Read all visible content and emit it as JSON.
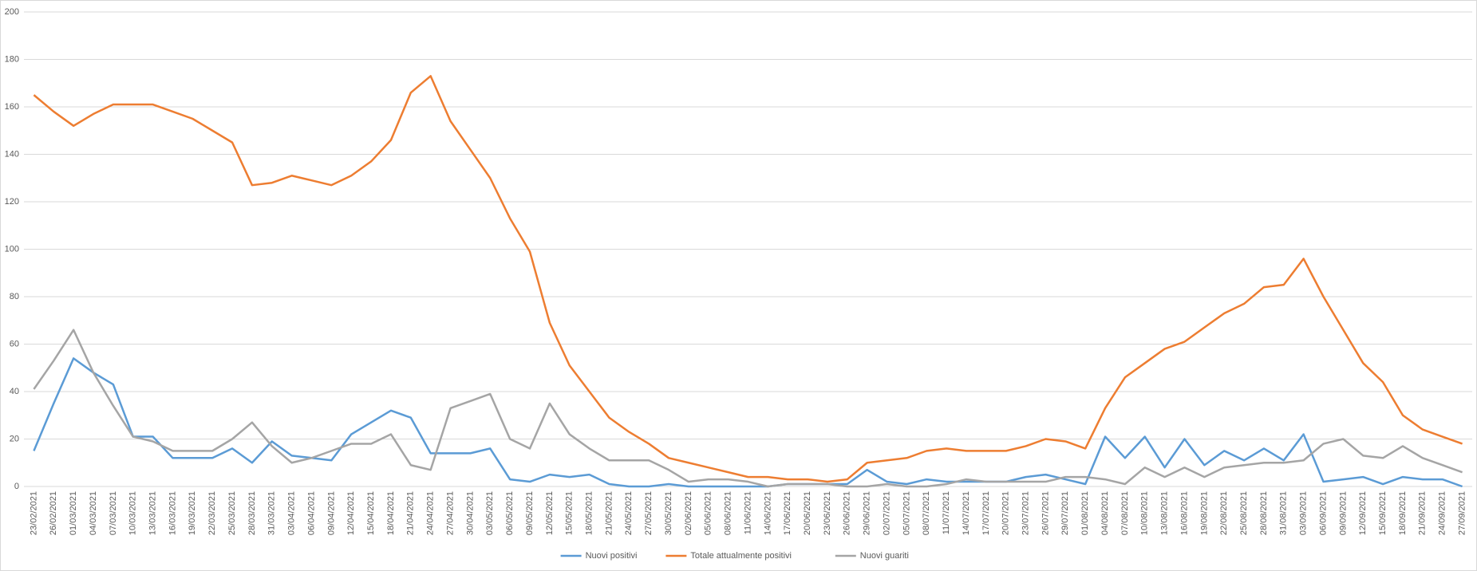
{
  "chart_data": {
    "type": "line",
    "categories": [
      "23/02/2021",
      "26/02/2021",
      "01/03/2021",
      "04/03/2021",
      "07/03/2021",
      "10/03/2021",
      "13/03/2021",
      "16/03/2021",
      "19/03/2021",
      "22/03/2021",
      "25/03/2021",
      "28/03/2021",
      "31/03/2021",
      "03/04/2021",
      "06/04/2021",
      "09/04/2021",
      "12/04/2021",
      "15/04/2021",
      "18/04/2021",
      "21/04/2021",
      "24/04/2021",
      "27/04/2021",
      "30/04/2021",
      "03/05/2021",
      "06/05/2021",
      "09/05/2021",
      "12/05/2021",
      "15/05/2021",
      "18/05/2021",
      "21/05/2021",
      "24/05/2021",
      "27/05/2021",
      "30/05/2021",
      "02/06/2021",
      "05/06/2021",
      "08/06/2021",
      "11/06/2021",
      "14/06/2021",
      "17/06/2021",
      "20/06/2021",
      "23/06/2021",
      "26/06/2021",
      "29/06/2021",
      "02/07/2021",
      "05/07/2021",
      "08/07/2021",
      "11/07/2021",
      "14/07/2021",
      "17/07/2021",
      "20/07/2021",
      "23/07/2021",
      "26/07/2021",
      "29/07/2021",
      "01/08/2021",
      "04/08/2021",
      "07/08/2021",
      "10/08/2021",
      "13/08/2021",
      "16/08/2021",
      "19/08/2021",
      "22/08/2021",
      "25/08/2021",
      "28/08/2021",
      "31/08/2021",
      "03/09/2021",
      "06/09/2021",
      "09/09/2021",
      "12/09/2021",
      "15/09/2021",
      "18/09/2021",
      "21/09/2021",
      "24/09/2021",
      "27/09/2021"
    ],
    "series": [
      {
        "name": "Nuovi positivi",
        "color": "#5b9bd5",
        "values": [
          15,
          35,
          54,
          48,
          43,
          21,
          21,
          12,
          12,
          12,
          16,
          10,
          19,
          13,
          12,
          11,
          22,
          27,
          32,
          29,
          14,
          14,
          14,
          16,
          3,
          2,
          5,
          4,
          5,
          1,
          0,
          0,
          1,
          0,
          0,
          0,
          0,
          0,
          1,
          1,
          1,
          1,
          7,
          2,
          1,
          3,
          2,
          2,
          2,
          2,
          4,
          5,
          3,
          1,
          21,
          12,
          21,
          8,
          20,
          9,
          15,
          11,
          16,
          11,
          22,
          2,
          3,
          4,
          1,
          4,
          3,
          3,
          0
        ]
      },
      {
        "name": "Totale attualmente positivi",
        "color": "#ed7d31",
        "values": [
          165,
          158,
          152,
          157,
          161,
          161,
          161,
          158,
          155,
          150,
          145,
          127,
          128,
          131,
          129,
          127,
          131,
          137,
          146,
          166,
          173,
          154,
          142,
          130,
          113,
          99,
          69,
          51,
          40,
          29,
          23,
          18,
          12,
          10,
          8,
          6,
          4,
          4,
          3,
          3,
          2,
          3,
          10,
          11,
          12,
          15,
          16,
          15,
          15,
          15,
          17,
          20,
          19,
          16,
          33,
          46,
          52,
          58,
          61,
          67,
          73,
          77,
          84,
          85,
          96,
          80,
          66,
          52,
          44,
          30,
          24,
          21,
          18
        ]
      },
      {
        "name": "Nuovi guariti",
        "color": "#a5a5a5",
        "values": [
          41,
          53,
          66,
          48,
          34,
          21,
          19,
          15,
          15,
          15,
          20,
          27,
          17,
          10,
          12,
          15,
          18,
          18,
          22,
          9,
          7,
          33,
          36,
          39,
          20,
          16,
          35,
          22,
          16,
          11,
          11,
          11,
          7,
          2,
          3,
          3,
          2,
          0,
          1,
          1,
          1,
          0,
          0,
          1,
          0,
          0,
          1,
          3,
          2,
          2,
          2,
          2,
          4,
          4,
          3,
          1,
          8,
          4,
          8,
          4,
          8,
          9,
          10,
          10,
          11,
          18,
          20,
          13,
          12,
          17,
          12,
          9,
          6
        ]
      }
    ],
    "ylim": [
      0,
      200
    ],
    "yticks": [
      0,
      20,
      40,
      60,
      80,
      100,
      120,
      140,
      160,
      180,
      200
    ],
    "grid": true,
    "legend": "bottom"
  }
}
